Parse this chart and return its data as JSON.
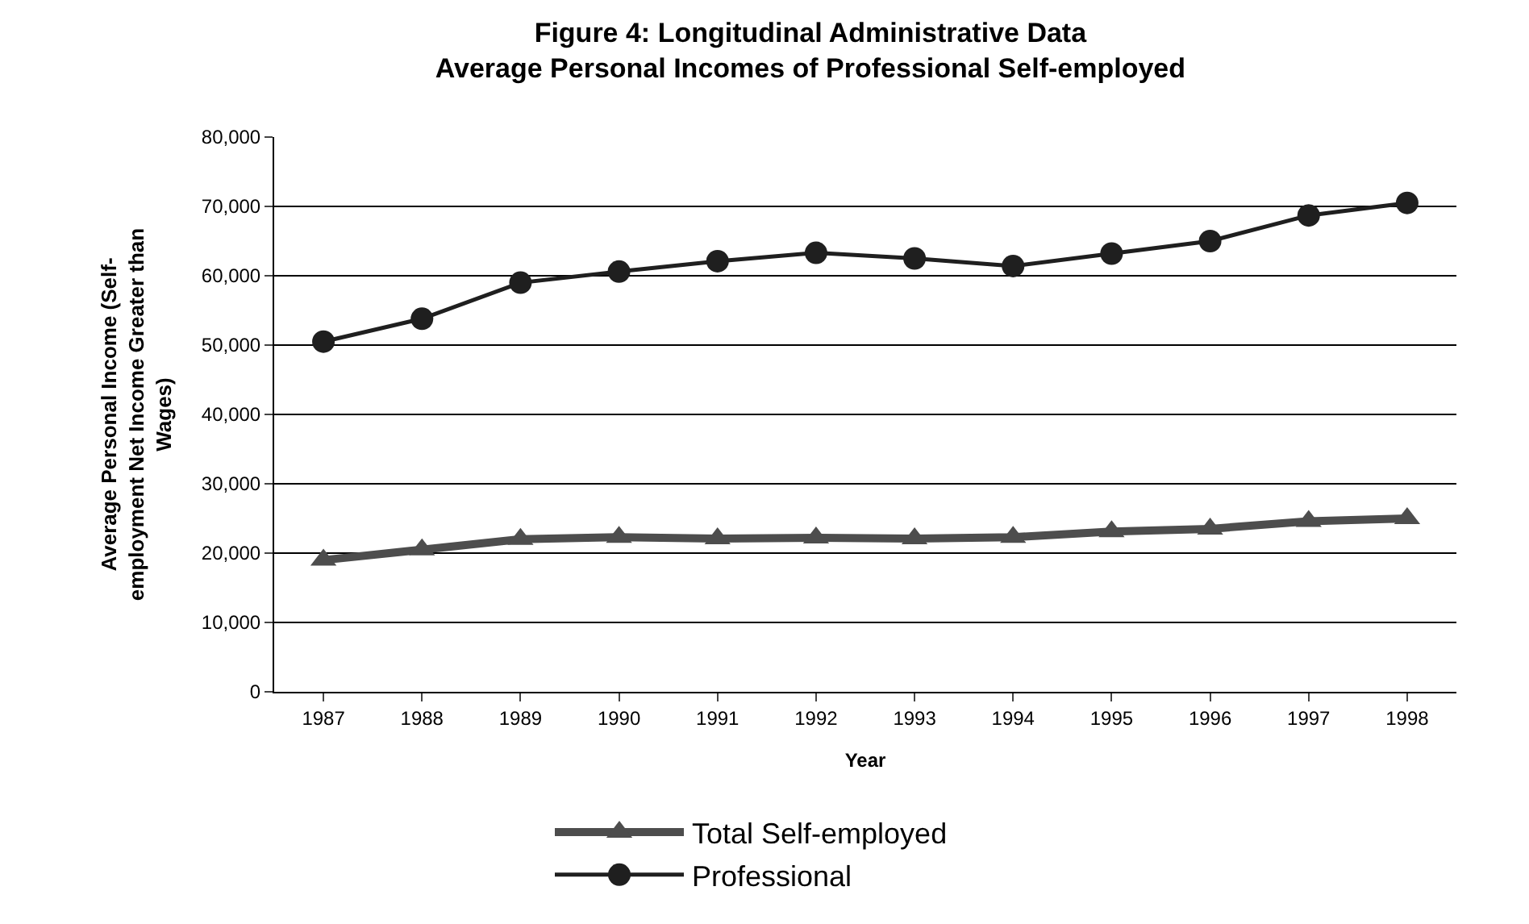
{
  "chart_data": {
    "type": "line",
    "title": "Figure 4: Longitudinal Administrative Data\nAverage Personal Incomes of Professional Self-employed",
    "xlabel": "Year",
    "ylabel": "Average Personal Income (Self-\nemployment Net Income Greater than\nWages)",
    "categories": [
      "1987",
      "1988",
      "1989",
      "1990",
      "1991",
      "1992",
      "1993",
      "1994",
      "1995",
      "1996",
      "1997",
      "1998"
    ],
    "series": [
      {
        "name": "Total Self-employed",
        "color": "#4d4d4d",
        "marker": "triangle",
        "values": [
          19000,
          20500,
          22000,
          22300,
          22100,
          22200,
          22100,
          22300,
          23100,
          23500,
          24600,
          25000
        ]
      },
      {
        "name": "Professional",
        "color": "#1f1f1f",
        "marker": "circle",
        "values": [
          50500,
          53800,
          59000,
          60600,
          62100,
          63300,
          62500,
          61400,
          63200,
          65000,
          68700,
          70500
        ]
      }
    ],
    "ylim": [
      0,
      80000
    ],
    "yticks": [
      {
        "value": 0,
        "label": "0"
      },
      {
        "value": 10000,
        "label": "10,000"
      },
      {
        "value": 20000,
        "label": "20,000"
      },
      {
        "value": 30000,
        "label": "30,000"
      },
      {
        "value": 40000,
        "label": "40,000"
      },
      {
        "value": 50000,
        "label": "50,000"
      },
      {
        "value": 60000,
        "label": "60,000"
      },
      {
        "value": 70000,
        "label": "70,000"
      },
      {
        "value": 80000,
        "label": "80,000"
      }
    ],
    "grid": "y",
    "legend": "bottom",
    "line_style": "solid"
  }
}
